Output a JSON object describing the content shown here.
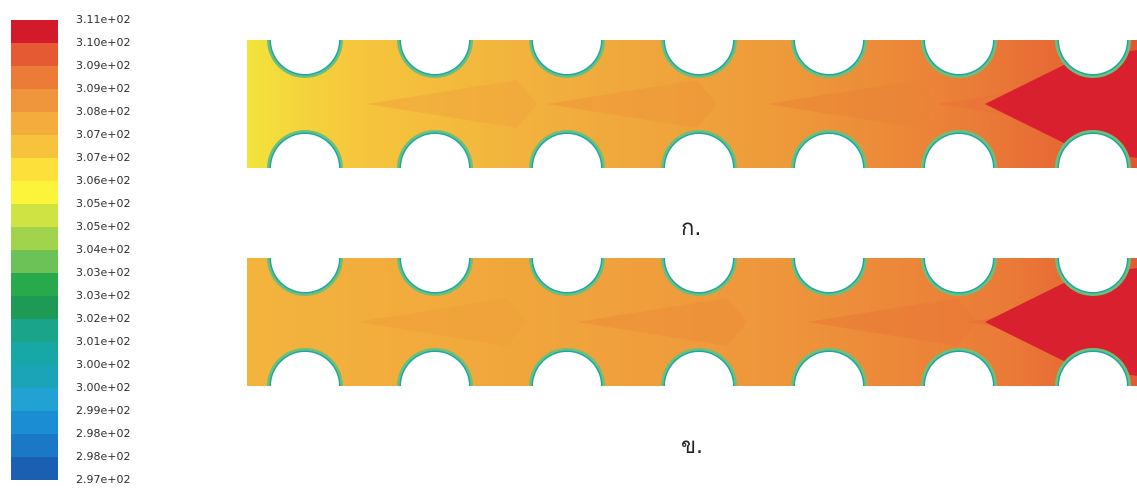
{
  "legend": {
    "ticks": [
      "3.11e+02",
      "3.10e+02",
      "3.09e+02",
      "3.09e+02",
      "3.08e+02",
      "3.07e+02",
      "3.07e+02",
      "3.06e+02",
      "3.05e+02",
      "3.05e+02",
      "3.04e+02",
      "3.03e+02",
      "3.03e+02",
      "3.02e+02",
      "3.01e+02",
      "3.00e+02",
      "3.00e+02",
      "2.99e+02",
      "2.98e+02",
      "2.98e+02",
      "2.97e+02"
    ],
    "colors": [
      "#d31a2b",
      "#e55a33",
      "#ec7b37",
      "#ef953b",
      "#f4ac3c",
      "#f7c23c",
      "#fde13a",
      "#fbf43a",
      "#cfe343",
      "#a1d34d",
      "#6cc256",
      "#28a94b",
      "#1f9a55",
      "#1aa58b",
      "#17a7a6",
      "#1ba4b8",
      "#22a1d3",
      "#1b8ed3",
      "#1b78c7",
      "#1b5fb3"
    ]
  },
  "panels": [
    {
      "caption": "ก."
    },
    {
      "caption": "ข."
    }
  ]
}
